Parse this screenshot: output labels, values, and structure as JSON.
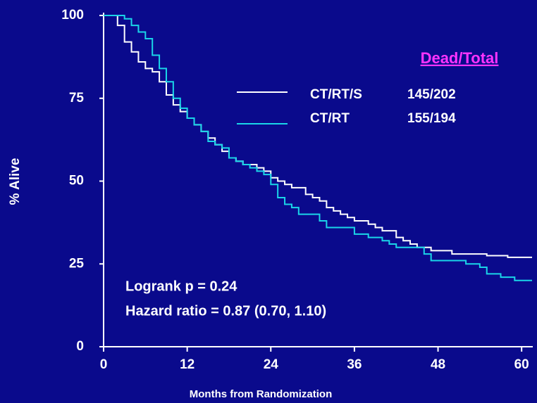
{
  "chart_data": {
    "type": "line",
    "ylabel": "% Alive",
    "xlabel": "Months from Randomization",
    "xlim": [
      0,
      61.6
    ],
    "ylim": [
      0,
      100
    ],
    "xticks": [
      0,
      12,
      24,
      36,
      48,
      60
    ],
    "yticks": [
      0,
      25,
      50,
      75,
      100
    ],
    "legend_header": "Dead/Total",
    "series": [
      {
        "name": "CT/RT/S",
        "legend_value": "145/202",
        "color": "#ffffff",
        "x": [
          0,
          2,
          3,
          4,
          5,
          6,
          7,
          8,
          9,
          10,
          11,
          12,
          13,
          14,
          15,
          16,
          17,
          18,
          19,
          20,
          22,
          23,
          24,
          25,
          26,
          27,
          29,
          30,
          31,
          32,
          33,
          34,
          35,
          36,
          38,
          39,
          40,
          42,
          43,
          44,
          45,
          47,
          50,
          55,
          58,
          61.5
        ],
        "values": [
          100,
          97,
          92,
          89,
          86,
          84,
          83,
          80,
          76,
          73,
          71,
          69,
          67,
          65,
          63,
          61,
          59,
          57,
          56,
          55,
          54,
          53,
          51,
          50,
          49,
          48,
          46,
          45,
          44,
          42,
          41,
          40,
          39,
          38,
          37,
          36,
          35,
          33,
          32,
          31,
          30,
          29,
          28,
          27.5,
          27,
          27
        ]
      },
      {
        "name": "CT/RT",
        "legend_value": "155/194",
        "color": "#1ad5e8",
        "x": [
          0,
          3,
          4,
          5,
          6,
          7,
          8,
          9,
          10,
          11,
          12,
          13,
          14,
          15,
          16,
          17,
          18,
          19,
          20,
          21,
          22,
          23,
          24,
          25,
          26,
          27,
          28,
          31,
          32,
          36,
          38,
          40,
          41,
          42,
          46,
          47,
          52,
          54,
          55,
          57,
          59,
          61.5
        ],
        "values": [
          100,
          99,
          97,
          95,
          93,
          88,
          84,
          80,
          75,
          72,
          69,
          67,
          65,
          62,
          61,
          60,
          57,
          56,
          55,
          54,
          53,
          52,
          49,
          45,
          43,
          42,
          40,
          38,
          36,
          34,
          33,
          32,
          31,
          30,
          28,
          26,
          25,
          24,
          22,
          21,
          20,
          20
        ]
      }
    ],
    "annotations": [
      "Logrank p = 0.24",
      "Hazard ratio = 0.87 (0.70, 1.10)"
    ]
  }
}
